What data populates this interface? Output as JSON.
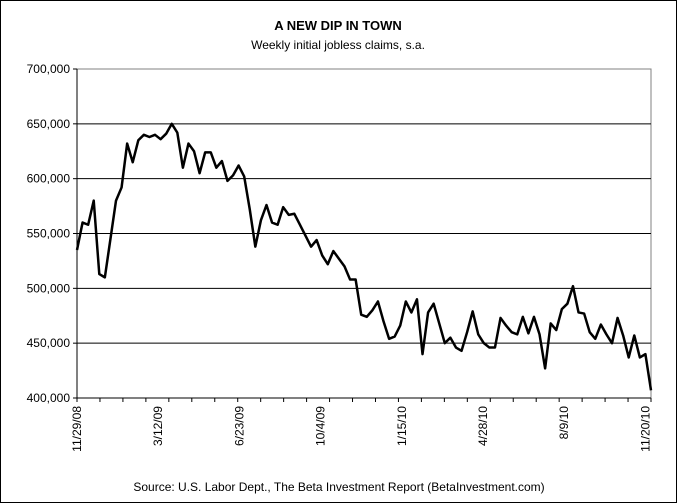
{
  "chart_data": {
    "type": "line",
    "title": "A NEW DIP IN TOWN",
    "subtitle": "Weekly initial jobless claims, s.a.",
    "source": "Source: U.S. Labor Dept., The Beta Investment Report (BetaInvestment.com)",
    "xlabel": "",
    "ylabel": "",
    "ylim": [
      400000,
      700000
    ],
    "y_ticks": [
      400000,
      450000,
      500000,
      550000,
      600000,
      650000,
      700000
    ],
    "y_tick_labels": [
      "400,000",
      "450,000",
      "500,000",
      "550,000",
      "600,000",
      "650,000",
      "700,000"
    ],
    "x_tick_labels": [
      "11/29/08",
      "3/12/09",
      "6/23/09",
      "10/4/09",
      "1/15/10",
      "4/28/10",
      "8/9/10",
      "11/20/10"
    ],
    "x_tick_weeks": [
      0,
      14.57,
      29.14,
      43.71,
      58.29,
      72.86,
      87.43,
      102
    ],
    "grid": "horizontal",
    "legend": "none",
    "line_color": "#000000",
    "series": [
      {
        "values": [
          535000,
          560000,
          558000,
          580000,
          513000,
          510000,
          545000,
          580000,
          592000,
          632000,
          615000,
          635000,
          640000,
          638000,
          640000,
          636000,
          641000,
          650000,
          642000,
          610000,
          632000,
          625000,
          605000,
          624000,
          624000,
          610000,
          616000,
          598000,
          603000,
          612000,
          602000,
          572000,
          538000,
          562000,
          576000,
          560000,
          558000,
          574000,
          567000,
          568000,
          558000,
          548000,
          538000,
          544000,
          530000,
          522000,
          534000,
          527000,
          520000,
          508000,
          508000,
          476000,
          474000,
          480000,
          488000,
          470000,
          454000,
          456000,
          466000,
          488000,
          478000,
          490000,
          440000,
          478000,
          486000,
          468000,
          450000,
          455000,
          446000,
          443000,
          460000,
          479000,
          458000,
          450000,
          446000,
          446000,
          473000,
          466000,
          460000,
          458000,
          474000,
          459000,
          474000,
          458000,
          427000,
          468000,
          462000,
          481000,
          486000,
          502000,
          478000,
          477000,
          460000,
          454000,
          467000,
          458000,
          450000,
          473000,
          457000,
          437000,
          457000,
          437000,
          440000,
          407000
        ]
      }
    ]
  }
}
